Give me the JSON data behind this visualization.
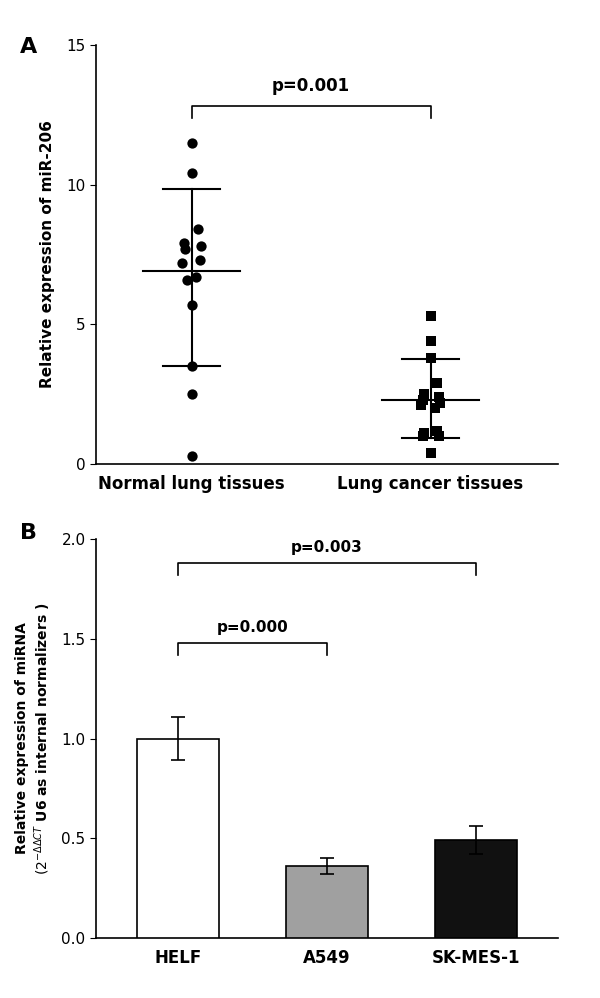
{
  "panel_A": {
    "group1_label": "Normal lung tissues",
    "group2_label": "Lung cancer tissues",
    "group1_points": [
      11.5,
      10.4,
      8.4,
      7.9,
      7.8,
      7.7,
      7.3,
      7.2,
      6.7,
      6.6,
      5.7,
      3.5,
      2.5,
      0.3
    ],
    "group2_points": [
      5.3,
      4.4,
      3.8,
      2.9,
      2.5,
      2.4,
      2.3,
      2.2,
      2.1,
      2.0,
      1.2,
      1.1,
      1.0,
      1.0,
      0.4
    ],
    "group1_mean": 6.9,
    "group1_upper": 9.85,
    "group1_lower": 3.5,
    "group2_mean": 2.3,
    "group2_upper": 3.75,
    "group2_lower": 0.95,
    "ylabel": "Relative expression of miR-206",
    "ylim": [
      0,
      15
    ],
    "yticks": [
      0,
      5,
      10,
      15
    ],
    "p_text": "p=0.001",
    "p_y": 13.2,
    "bracket_y": 12.8,
    "marker1": "o",
    "marker2": "s",
    "markersize": 7,
    "color": "#000000",
    "panel_label": "A",
    "group1_x": 1.0,
    "group2_x": 2.5,
    "xlim_left": 0.4,
    "xlim_right": 3.3
  },
  "panel_B": {
    "categories": [
      "HELF",
      "A549",
      "SK-MES-1"
    ],
    "values": [
      1.0,
      0.36,
      0.49
    ],
    "errors": [
      0.11,
      0.04,
      0.07
    ],
    "bar_colors": [
      "#ffffff",
      "#a0a0a0",
      "#111111"
    ],
    "bar_edgecolor": "#000000",
    "ylim": [
      0,
      2.0
    ],
    "yticks": [
      0.0,
      0.5,
      1.0,
      1.5,
      2.0
    ],
    "p_text_1": "p=0.000",
    "p_y_1": 1.52,
    "p_text_2": "p=0.003",
    "p_y_2": 1.92,
    "bracket_y_1": 1.48,
    "bracket_y_2": 1.88,
    "panel_label": "B"
  },
  "background_color": "#ffffff",
  "figure_width": 6.0,
  "figure_height": 9.98
}
